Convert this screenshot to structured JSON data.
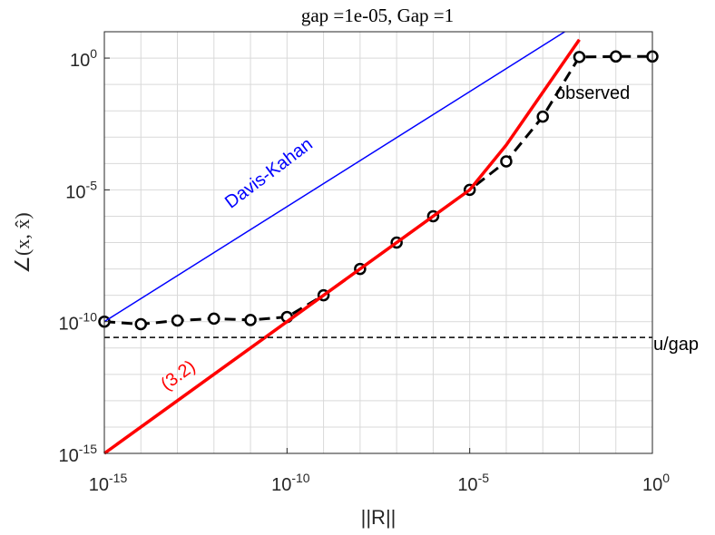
{
  "chart_data": {
    "type": "line",
    "title": "gap =1e-05,   Gap =1",
    "xlabel": "||R||",
    "ylabel": "∠(x, x̂)",
    "xscale": "log",
    "yscale": "log",
    "xlim": [
      1e-15,
      1
    ],
    "ylim": [
      1e-15,
      10
    ],
    "grid": true,
    "x_ticks": [
      {
        "base": "10",
        "exp": "-15"
      },
      {
        "base": "10",
        "exp": "-10"
      },
      {
        "base": "10",
        "exp": "-5"
      },
      {
        "base": "10",
        "exp": "0"
      }
    ],
    "y_ticks": [
      {
        "base": "10",
        "exp": "-15"
      },
      {
        "base": "10",
        "exp": "-10"
      },
      {
        "base": "10",
        "exp": "-5"
      },
      {
        "base": "10",
        "exp": "0"
      }
    ],
    "series": [
      {
        "name": "observed",
        "style": "dashed-circle",
        "color": "#000000",
        "x": [
          1e-15,
          1e-14,
          1e-13,
          1e-12,
          1e-11,
          1e-10,
          1e-09,
          1e-08,
          1e-07,
          1e-06,
          1e-05,
          0.0001,
          0.001,
          0.01,
          0.1,
          1
        ],
        "y": [
          1e-10,
          8e-11,
          1.1e-10,
          1.3e-10,
          1.15e-10,
          1.5e-10,
          1e-09,
          1e-08,
          1e-07,
          1e-06,
          1e-05,
          0.00012,
          0.006,
          1.1,
          1.15,
          1.15
        ]
      },
      {
        "name": "(3.2)",
        "style": "solid",
        "color": "#ff0000",
        "x": [
          1e-15,
          1e-05,
          0.0001,
          0.001,
          0.01
        ],
        "y": [
          1e-15,
          1e-05,
          0.0005,
          0.05,
          5
        ]
      },
      {
        "name": "Davis-Kahan",
        "style": "solid",
        "color": "#0000ff",
        "x": [
          1e-15,
          0.004
        ],
        "y": [
          1e-10,
          10
        ]
      },
      {
        "name": "u/gap",
        "style": "dashed",
        "color": "#000000",
        "x": [
          1e-15,
          1
        ],
        "y": [
          2.5e-11,
          2.5e-11
        ]
      }
    ],
    "annotations": [
      {
        "text": "Davis-Kahan",
        "color": "#0000ff"
      },
      {
        "text": "(3.2)",
        "color": "#ff0000"
      },
      {
        "text": "observed",
        "color": "#000000"
      },
      {
        "text": "u/gap",
        "color": "#000000"
      }
    ]
  }
}
